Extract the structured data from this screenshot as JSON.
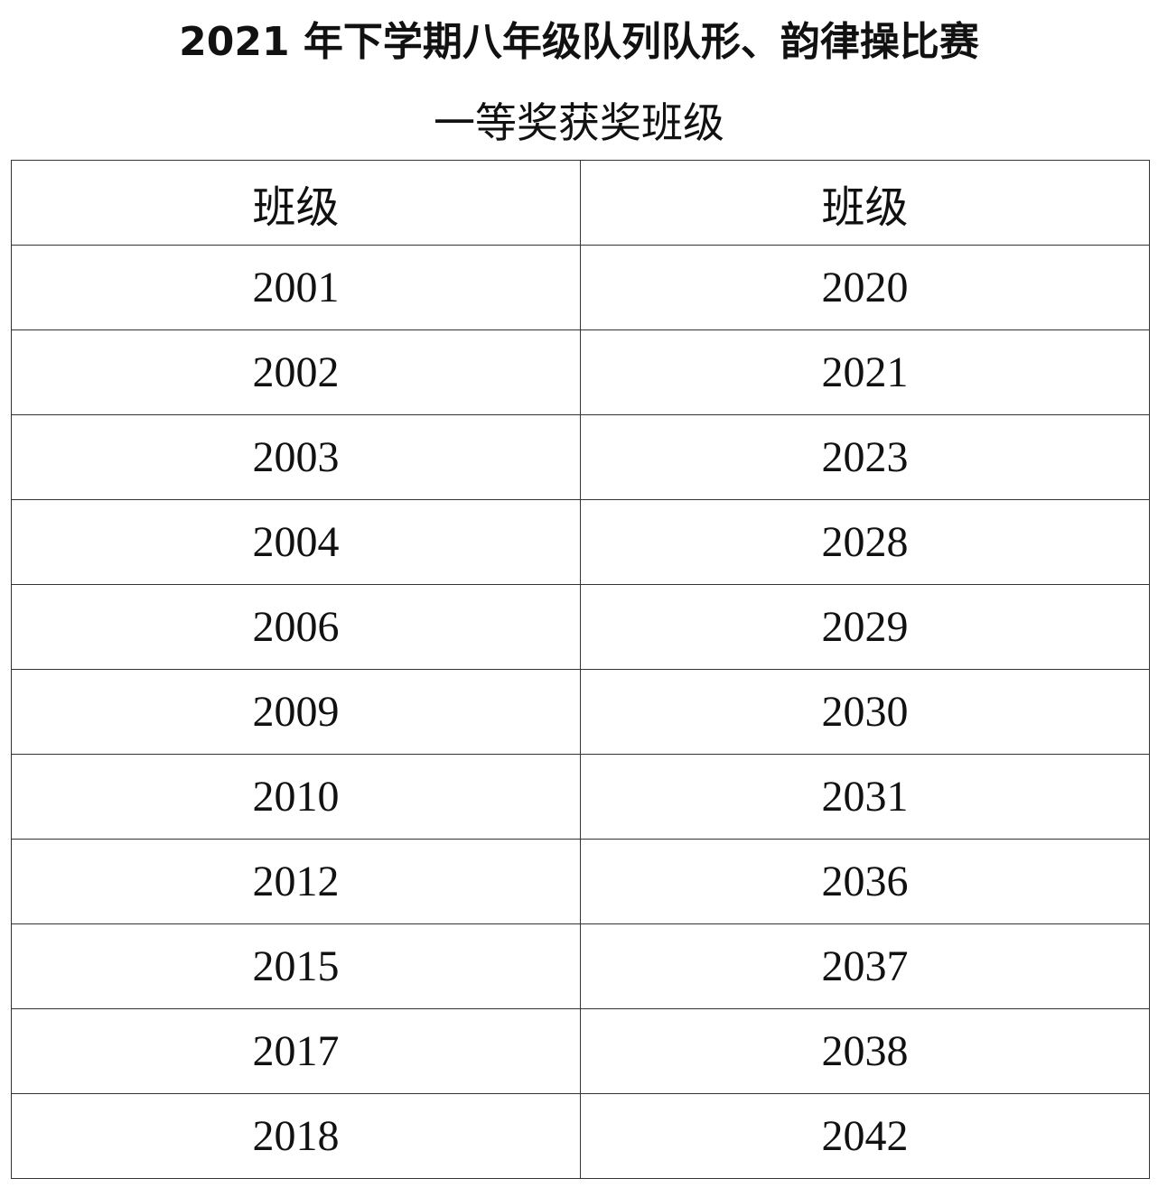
{
  "title_line1": "2021 年下学期八年级队列队形、韵律操比赛",
  "title_line2": "一等奖获奖班级",
  "headers": [
    "班级",
    "班级"
  ],
  "rows": [
    [
      "2001",
      "2020"
    ],
    [
      "2002",
      "2021"
    ],
    [
      "2003",
      "2023"
    ],
    [
      "2004",
      "2028"
    ],
    [
      "2006",
      "2029"
    ],
    [
      "2009",
      "2030"
    ],
    [
      "2010",
      "2031"
    ],
    [
      "2012",
      "2036"
    ],
    [
      "2015",
      "2037"
    ],
    [
      "2017",
      "2038"
    ],
    [
      "2018",
      "2042"
    ]
  ]
}
